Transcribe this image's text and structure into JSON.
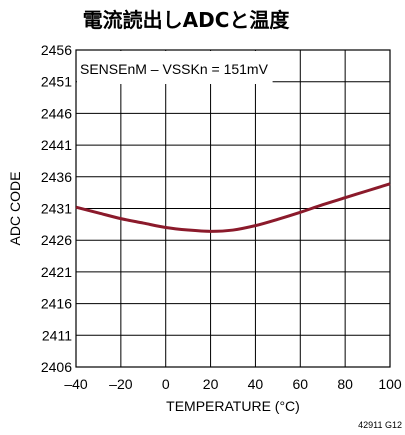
{
  "chart_data": {
    "type": "line",
    "title": "電流読出しADCと温度",
    "xlabel": "TEMPERATURE (°C)",
    "ylabel": "ADC CODE",
    "xlim": [
      -40,
      100
    ],
    "ylim": [
      2406,
      2456
    ],
    "x_ticks": [
      -40,
      -20,
      0,
      20,
      40,
      60,
      80,
      100
    ],
    "x_tick_labels": [
      "–40",
      "–20",
      "0",
      "20",
      "40",
      "60",
      "80",
      "100"
    ],
    "y_ticks": [
      2406,
      2411,
      2416,
      2421,
      2426,
      2431,
      2436,
      2441,
      2446,
      2451,
      2456
    ],
    "y_tick_labels": [
      "2406",
      "2411",
      "2416",
      "2421",
      "2426",
      "2431",
      "2436",
      "2441",
      "2446",
      "2451",
      "2456"
    ],
    "grid": true,
    "annotation": "SENSEnM – VSSKn = 151mV",
    "figure_id": "42911 G12",
    "line_color": "#8b1a2b",
    "series": [
      {
        "x": [
          -40,
          -30,
          -20,
          -10,
          0,
          10,
          20,
          30,
          40,
          50,
          60,
          70,
          80,
          90,
          100
        ],
        "values": [
          2431.2,
          2430.3,
          2429.4,
          2428.7,
          2428.0,
          2427.6,
          2427.4,
          2427.6,
          2428.3,
          2429.3,
          2430.4,
          2431.6,
          2432.7,
          2433.8,
          2434.9
        ]
      }
    ]
  }
}
